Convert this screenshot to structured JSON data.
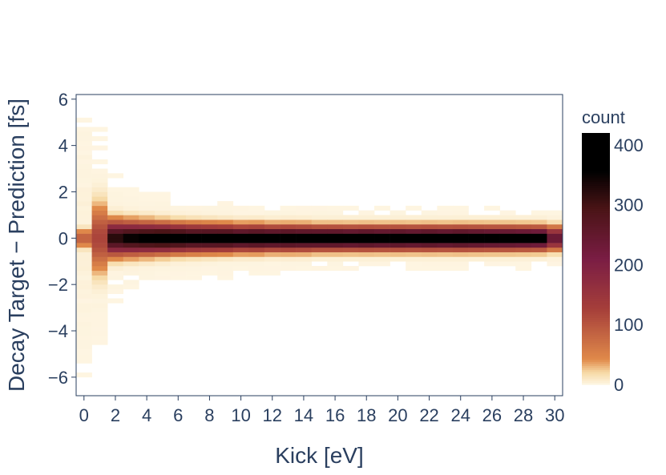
{
  "chart_data": {
    "type": "heatmap",
    "title": "",
    "xlabel": "Kick [eV]",
    "ylabel": "Decay Target − Prediction [fs]",
    "x_range": [
      -0.5,
      30.5
    ],
    "y_range": [
      -6.8,
      6.2
    ],
    "x_ticks": [
      0,
      2,
      4,
      6,
      8,
      10,
      12,
      14,
      16,
      18,
      20,
      22,
      24,
      26,
      28,
      30
    ],
    "x_tick_labels": [
      "0",
      "2",
      "4",
      "6",
      "8",
      "10",
      "12",
      "14",
      "16",
      "18",
      "20",
      "22",
      "24",
      "26",
      "28",
      "30"
    ],
    "y_ticks": [
      -6,
      -4,
      -2,
      0,
      2,
      4,
      6
    ],
    "y_tick_labels": [
      "−6",
      "−4",
      "−2",
      "0",
      "2",
      "4",
      "6"
    ],
    "x_bin_width": 1,
    "y_bin_width": 0.2,
    "bins": {
      "x_centers": [
        0,
        1,
        2,
        3,
        4,
        5,
        6,
        7,
        8,
        9,
        10,
        11,
        12,
        13,
        14,
        15,
        16,
        17,
        18,
        19,
        20,
        21,
        22,
        23,
        24,
        25,
        26,
        27,
        28,
        29,
        30
      ],
      "center_offset": [
        0,
        0,
        0,
        0,
        0,
        0,
        0,
        0,
        0,
        0,
        0,
        0,
        0,
        0,
        0,
        0,
        0,
        0,
        0,
        0,
        0,
        0,
        0,
        0,
        0,
        0,
        0,
        0,
        0,
        0,
        0
      ],
      "peak_count": [
        90,
        120,
        330,
        360,
        380,
        400,
        400,
        390,
        400,
        410,
        400,
        410,
        410,
        420,
        410,
        420,
        420,
        410,
        420,
        410,
        420,
        410,
        420,
        410,
        420,
        410,
        400,
        400,
        390,
        380,
        250
      ],
      "core_sigma": [
        0.25,
        0.9,
        0.45,
        0.42,
        0.4,
        0.38,
        0.36,
        0.35,
        0.34,
        0.33,
        0.32,
        0.32,
        0.31,
        0.31,
        0.31,
        0.3,
        0.3,
        0.3,
        0.3,
        0.3,
        0.3,
        0.3,
        0.3,
        0.3,
        0.3,
        0.3,
        0.3,
        0.3,
        0.3,
        0.3,
        0.3
      ],
      "tail_extent": [
        6.2,
        5.0,
        2.8,
        2.4,
        2.1,
        2.0,
        1.9,
        1.8,
        1.7,
        1.7,
        1.6,
        1.6,
        1.5,
        1.5,
        1.5,
        1.5,
        1.4,
        1.4,
        1.4,
        1.4,
        1.4,
        1.4,
        1.4,
        1.4,
        1.4,
        1.4,
        1.4,
        1.3,
        1.3,
        1.3,
        1.2
      ]
    },
    "colorbar": {
      "title": "count",
      "range": [
        0,
        420
      ],
      "ticks": [
        0,
        100,
        200,
        300,
        400
      ],
      "tick_labels": [
        "0",
        "100",
        "200",
        "300",
        "400"
      ],
      "colors": [
        "#fef6e4",
        "#f6d9a4",
        "#e08a4a",
        "#a63f3a",
        "#7a1d44",
        "#4a1416",
        "#000000"
      ],
      "stops": [
        0,
        0.05,
        0.1,
        0.3,
        0.5,
        0.7,
        0.85
      ]
    },
    "grid": false,
    "legend": "colorbar-right"
  }
}
